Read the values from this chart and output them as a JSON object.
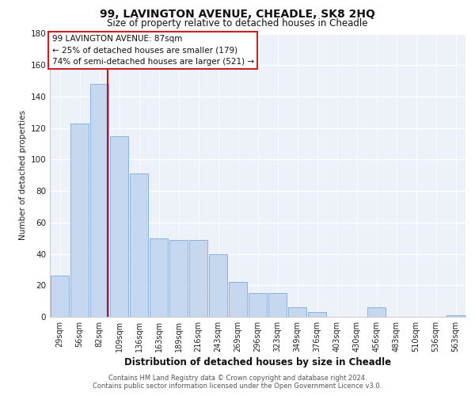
{
  "title": "99, LAVINGTON AVENUE, CHEADLE, SK8 2HQ",
  "subtitle": "Size of property relative to detached houses in Cheadle",
  "xlabel": "Distribution of detached houses by size in Cheadle",
  "ylabel": "Number of detached properties",
  "bar_labels": [
    "29sqm",
    "56sqm",
    "82sqm",
    "109sqm",
    "136sqm",
    "163sqm",
    "189sqm",
    "216sqm",
    "243sqm",
    "269sqm",
    "296sqm",
    "323sqm",
    "349sqm",
    "376sqm",
    "403sqm",
    "430sqm",
    "456sqm",
    "483sqm",
    "510sqm",
    "536sqm",
    "563sqm"
  ],
  "bar_values": [
    26,
    123,
    148,
    115,
    91,
    50,
    49,
    49,
    40,
    22,
    15,
    15,
    6,
    3,
    0,
    0,
    6,
    0,
    0,
    0,
    1
  ],
  "bar_color": "#c5d8f0",
  "bar_edge_color": "#7aaadd",
  "vline_color": "#cc0000",
  "vline_x": 2.42,
  "annotation_text_line1": "99 LAVINGTON AVENUE: 87sqm",
  "annotation_text_line2": "← 25% of detached houses are smaller (179)",
  "annotation_text_line3": "74% of semi-detached houses are larger (521) →",
  "ylim": [
    0,
    180
  ],
  "yticks": [
    0,
    20,
    40,
    60,
    80,
    100,
    120,
    140,
    160,
    180
  ],
  "background_color": "#edf1f9",
  "grid_color": "#ffffff",
  "footer_line1": "Contains HM Land Registry data © Crown copyright and database right 2024.",
  "footer_line2": "Contains public sector information licensed under the Open Government Licence v3.0."
}
